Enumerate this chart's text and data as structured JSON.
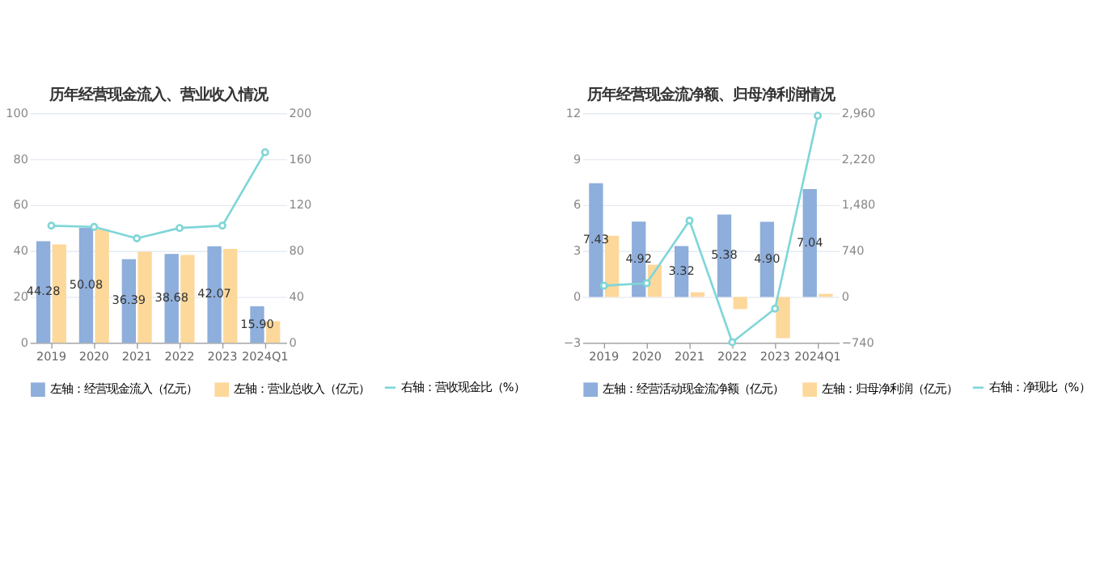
{
  "chart_data": [
    {
      "type": "bar",
      "title": "历年经营现金流入、营业收入情况",
      "categories": [
        "2019",
        "2020",
        "2021",
        "2022",
        "2023",
        "2024Q1"
      ],
      "series": [
        {
          "name": "左轴：经营现金流入（亿元）",
          "color": "#8eaedb",
          "values": [
            44.28,
            50.08,
            36.39,
            38.68,
            42.07,
            15.9
          ],
          "value_labels": [
            "44.28",
            "50.08",
            "36.39",
            "38.68",
            "42.07",
            "15.90"
          ]
        },
        {
          "name": "左轴：营业总收入（亿元）",
          "color": "#fdd89b",
          "values": [
            42.8,
            49.4,
            39.7,
            38.3,
            40.9,
            9.4
          ]
        },
        {
          "name": "右轴：营收现金比（%）",
          "type": "line",
          "axis": "y2",
          "color": "#7fd6d8",
          "marker": "circle",
          "values": [
            102,
            101,
            91,
            100,
            102,
            166
          ]
        }
      ],
      "ylim": [
        0,
        100
      ],
      "yticks": [
        0,
        20,
        40,
        60,
        80,
        100
      ],
      "y2lim": [
        0,
        200
      ],
      "y2ticks": [
        0,
        40,
        80,
        120,
        160,
        200
      ],
      "grid": "y",
      "legend": "bottom"
    },
    {
      "type": "bar",
      "title": "历年经营现金流净额、归母净利润情况",
      "categories": [
        "2019",
        "2020",
        "2021",
        "2022",
        "2023",
        "2024Q1"
      ],
      "series": [
        {
          "name": "左轴：经营活动现金流净额（亿元）",
          "color": "#8eaedb",
          "values": [
            7.43,
            4.92,
            3.32,
            5.38,
            4.9,
            7.04
          ],
          "value_labels": [
            "7.43",
            "4.92",
            "3.32",
            "5.38",
            "4.90",
            "7.04"
          ]
        },
        {
          "name": "左轴：归母净利润（亿元）",
          "color": "#fdd89b",
          "values": [
            4.0,
            2.1,
            0.3,
            -0.8,
            -2.7,
            0.2
          ]
        },
        {
          "name": "右轴：净现比（%）",
          "type": "line",
          "axis": "y2",
          "color": "#7fd6d8",
          "marker": "circle",
          "values": [
            180,
            220,
            1230,
            -730,
            -190,
            2920
          ]
        }
      ],
      "ylim": [
        -3,
        12
      ],
      "yticks": [
        -3,
        0,
        3,
        6,
        9,
        12
      ],
      "y2lim": [
        -740,
        2960
      ],
      "y2ticks": [
        -740,
        0,
        740,
        {
          "value": 1480,
          "label": "1,480"
        },
        {
          "value": 2220,
          "label": "2,220"
        },
        {
          "value": 2960,
          "label": "2,960"
        }
      ],
      "grid": "y",
      "legend": "bottom"
    }
  ]
}
